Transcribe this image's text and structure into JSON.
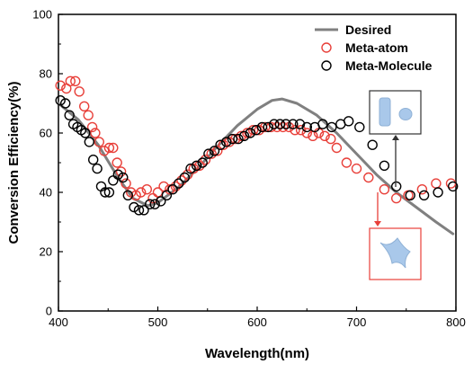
{
  "chart_data": {
    "type": "scatter",
    "xlabel": "Wavelength(nm)",
    "ylabel": "Conversion Efficiency(%)",
    "xlim": [
      400,
      800
    ],
    "ylim": [
      0,
      100
    ],
    "xticks": [
      400,
      500,
      600,
      700,
      800
    ],
    "yticks": [
      0,
      20,
      40,
      60,
      80,
      100
    ],
    "legend_position": "top-right",
    "series": [
      {
        "name": "Desired",
        "kind": "line",
        "color": "#808080",
        "x": [
          400,
          420,
          440,
          460,
          475,
          490,
          500,
          520,
          540,
          560,
          580,
          600,
          615,
          625,
          640,
          660,
          680,
          700,
          720,
          740,
          760,
          780,
          797
        ],
        "y": [
          70,
          64.5,
          56,
          45,
          38,
          35.5,
          36.5,
          41.5,
          48,
          55.5,
          62.5,
          68,
          71,
          71.5,
          70,
          66,
          60,
          53,
          46,
          40,
          35,
          30,
          26
        ]
      },
      {
        "name": "Meta-atom",
        "kind": "scatter",
        "color": "#e8403a",
        "x": [
          402,
          408,
          412,
          417,
          421,
          426,
          430,
          434,
          437,
          441,
          446,
          451,
          455,
          459,
          463,
          468,
          473,
          478,
          483,
          489,
          495,
          500,
          506,
          512,
          518,
          524,
          530,
          536,
          542,
          548,
          554,
          560,
          566,
          572,
          578,
          584,
          590,
          596,
          602,
          608,
          614,
          620,
          626,
          632,
          638,
          644,
          650,
          656,
          662,
          668,
          674,
          680,
          690,
          700,
          712,
          728,
          740,
          752,
          766,
          780,
          795
        ],
        "y": [
          76,
          75,
          77.5,
          77.5,
          74,
          69,
          66,
          62,
          60,
          57,
          54,
          55,
          55,
          50,
          47,
          43,
          40,
          39,
          40,
          41,
          38,
          40,
          42,
          41,
          42,
          44,
          46,
          48,
          49,
          51,
          53,
          54,
          56,
          57,
          58,
          59,
          60,
          61,
          61,
          62,
          62,
          62,
          62,
          62,
          61,
          61,
          60,
          59,
          60,
          59,
          58,
          55,
          50,
          48,
          45,
          41,
          38,
          39,
          41,
          43,
          43
        ]
      },
      {
        "name": "Meta-Molecule",
        "kind": "scatter",
        "color": "#000000",
        "x": [
          402,
          407,
          411,
          415,
          419,
          423,
          427,
          431,
          435,
          439,
          443,
          447,
          451,
          455,
          460,
          465,
          470,
          476,
          481,
          486,
          492,
          497,
          503,
          509,
          515,
          521,
          527,
          533,
          539,
          545,
          551,
          557,
          563,
          569,
          575,
          581,
          587,
          593,
          599,
          605,
          611,
          617,
          623,
          629,
          636,
          643,
          650,
          658,
          666,
          675,
          684,
          692,
          703,
          716,
          728,
          740,
          754,
          768,
          782,
          797
        ],
        "y": [
          71,
          70,
          66,
          63,
          62,
          61,
          60,
          57,
          51,
          48,
          42,
          40,
          40,
          44,
          46,
          45,
          39,
          35,
          34,
          34,
          36,
          36,
          37,
          39,
          41,
          43,
          45,
          48,
          49,
          50,
          53,
          54,
          56,
          57,
          58,
          58,
          59,
          60,
          61,
          62,
          62,
          63,
          63,
          63,
          63,
          63,
          62,
          62,
          63,
          62,
          63,
          64,
          62,
          56,
          49,
          42,
          39,
          39,
          40,
          42
        ]
      }
    ]
  },
  "insets": {
    "upper": {
      "border_color": "#333333",
      "shape_color": "#a9c8ea",
      "arrow_color": "#333333"
    },
    "lower": {
      "border_color": "#e8403a",
      "shape_color": "#a9c8ea",
      "arrow_color": "#e8403a"
    }
  }
}
